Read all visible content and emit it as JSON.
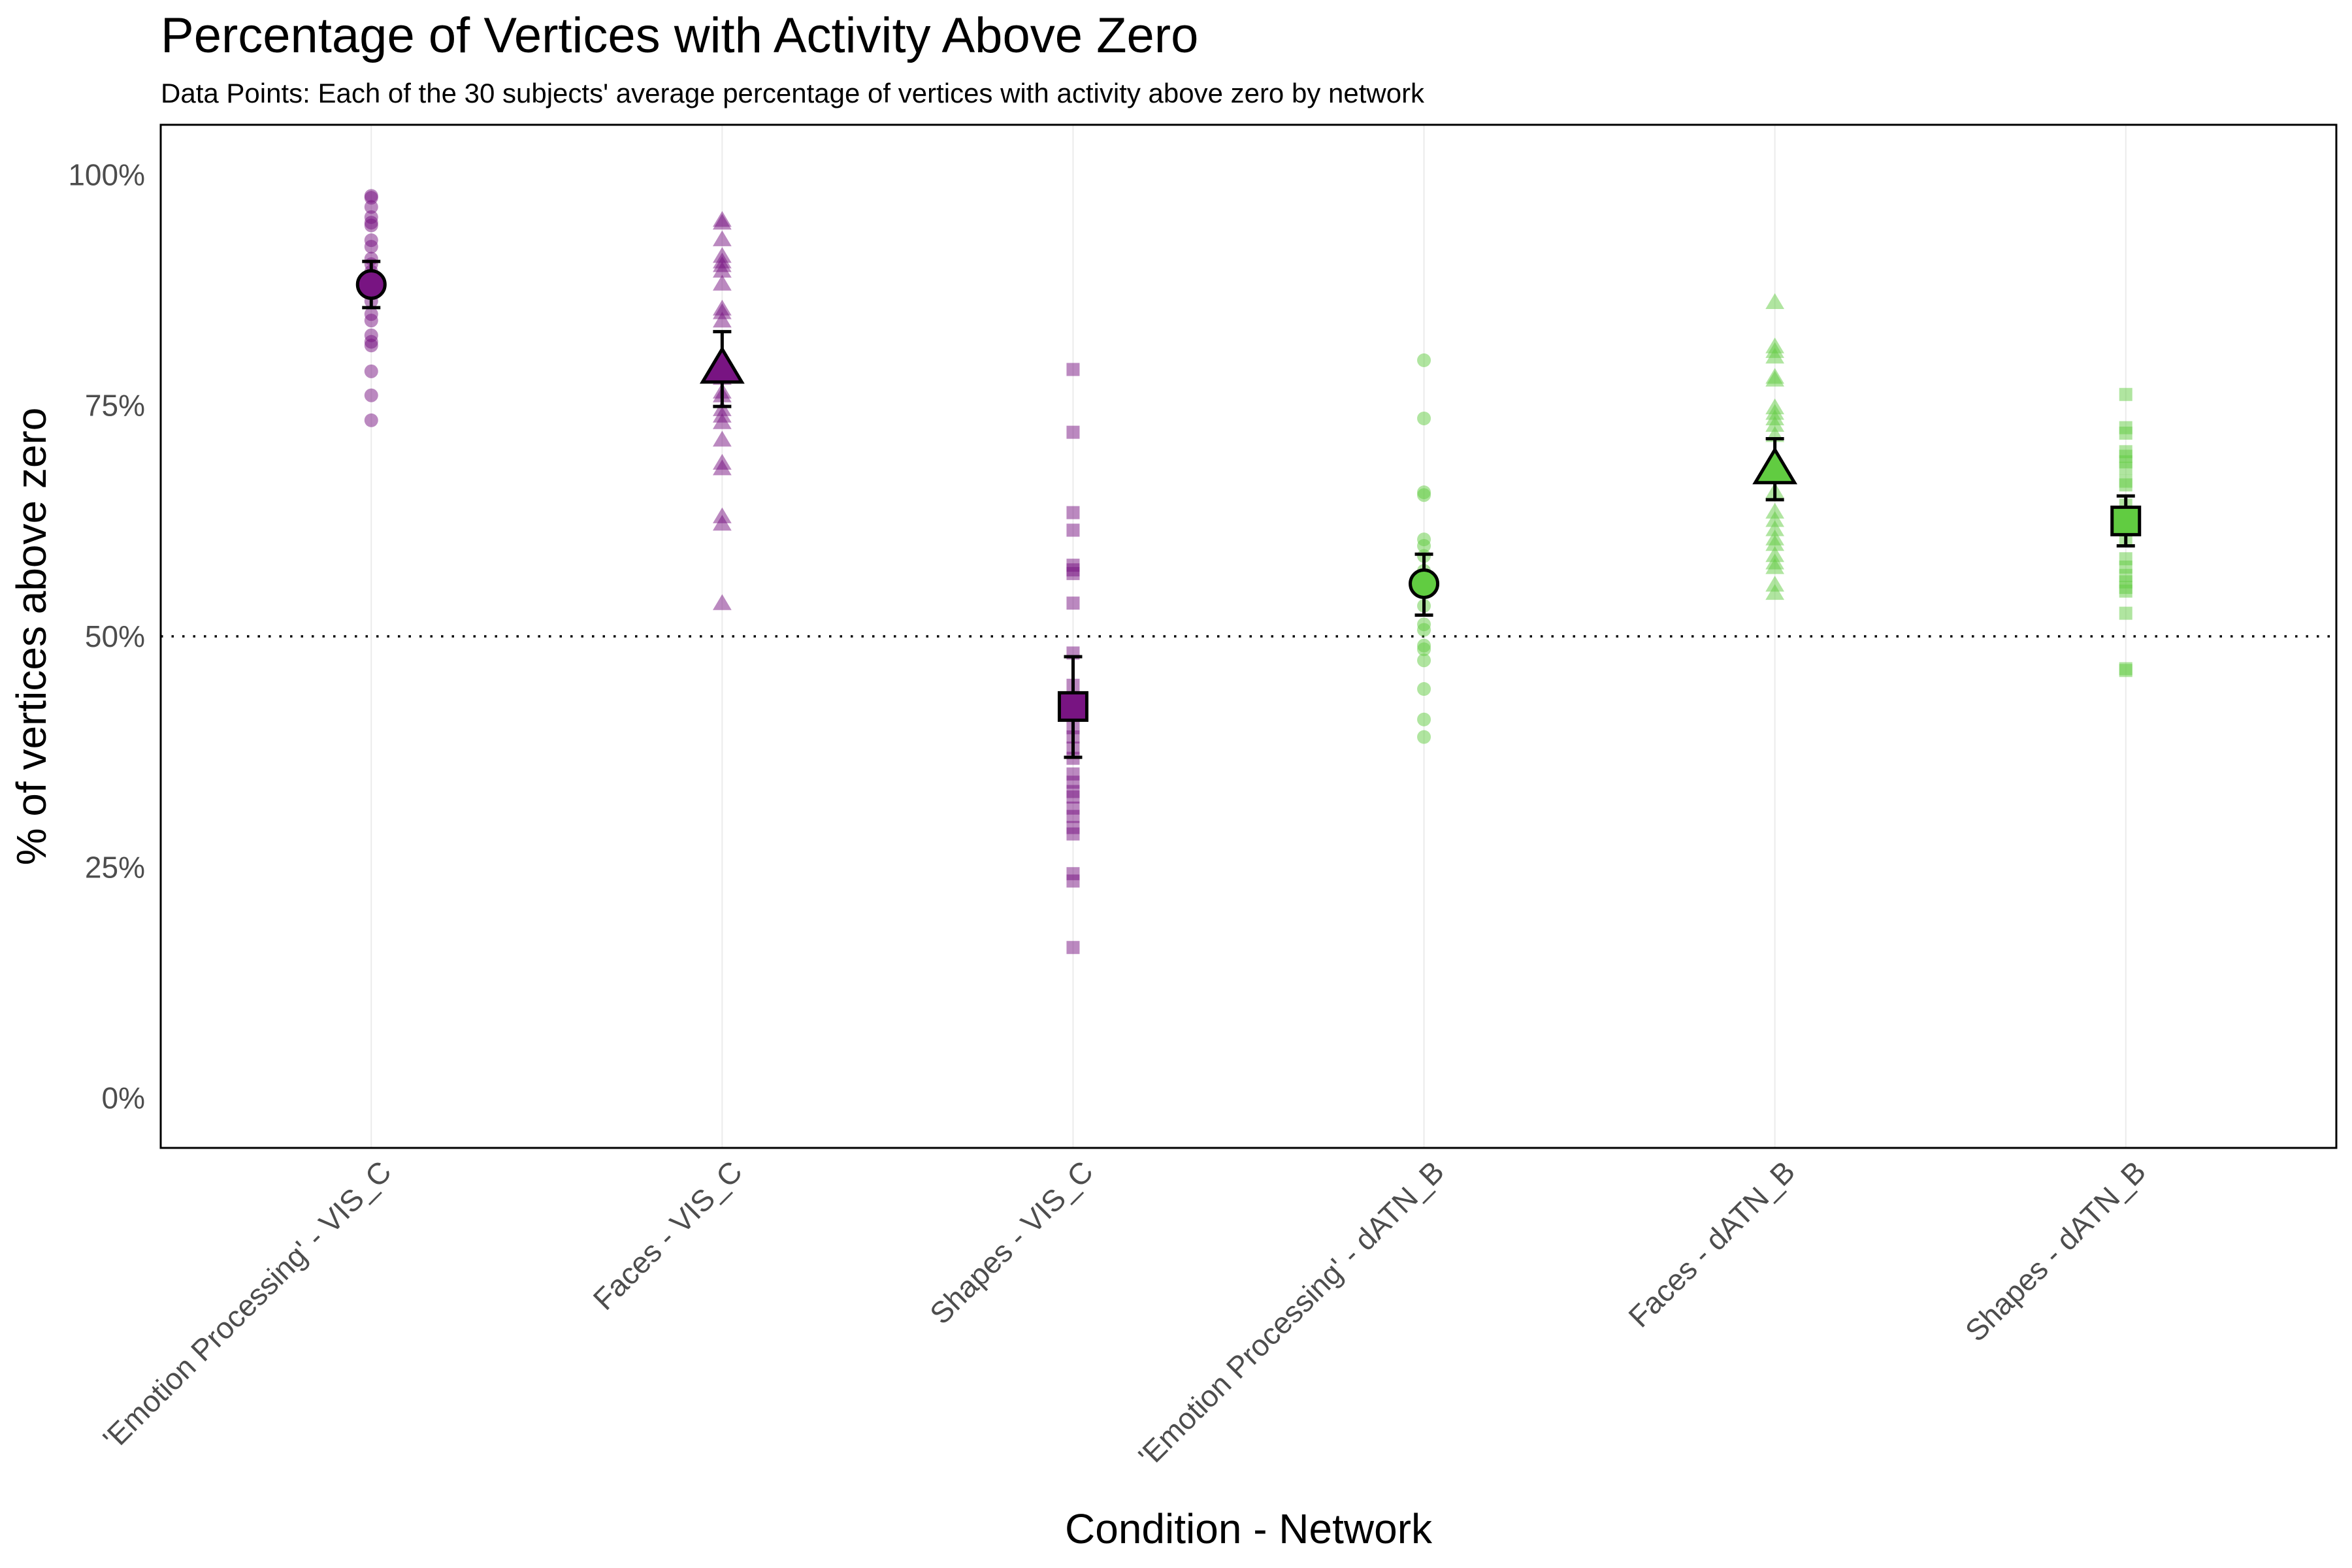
{
  "chart_data": {
    "type": "scatter",
    "title": "Percentage of Vertices with Activity Above Zero",
    "subtitle": "Data Points: Each of the 30 subjects' average percentage of vertices with activity above zero by network",
    "xlabel": "Condition - Network",
    "ylabel": "% of vertices above zero",
    "ylim": [
      -5.4,
      105.4
    ],
    "yticks": [
      0,
      25,
      50,
      75,
      100
    ],
    "ytick_labels": [
      "0%",
      "25%",
      "50%",
      "75%",
      "100%"
    ],
    "reference_line": {
      "y": 50,
      "style": "dotted"
    },
    "grid": "vertical-major-only",
    "legend": "none",
    "colors": {
      "VIS_C": "#781482",
      "dATN_B": "#61CC41",
      "outline": "#000000"
    },
    "categories": [
      "'Emotion Processing' - VIS_C",
      "Faces - VIS_C",
      "Shapes - VIS_C",
      "'Emotion Processing' - dATN_B",
      "Faces - dATN_B",
      "Shapes - dATN_B"
    ],
    "series": [
      {
        "name": "'Emotion Processing' - VIS_C",
        "network": "VIS_C",
        "shape": "circle",
        "mean": 88.1,
        "error_low": 85.6,
        "error_high": 90.6,
        "points": [
          97.7,
          97.5,
          96.5,
          95.4,
          94.8,
          94.5,
          92.9,
          92.2,
          90.9,
          90.3,
          89.5,
          88.8,
          87.9,
          87.2,
          86.3,
          84.9,
          84.2,
          82.6,
          81.9,
          81.5,
          78.7,
          76.1,
          73.4
        ]
      },
      {
        "name": "Faces - VIS_C",
        "network": "VIS_C",
        "shape": "triangle",
        "mean": 78.9,
        "error_low": 74.9,
        "error_high": 83.0,
        "points": [
          95.0,
          94.7,
          92.9,
          91.1,
          90.5,
          90.1,
          89.5,
          88.1,
          85.4,
          85.0,
          84.1,
          77.9,
          76.4,
          76.0,
          74.5,
          73.8,
          73.1,
          71.2,
          68.7,
          68.1,
          62.9,
          62.1,
          53.5
        ]
      },
      {
        "name": "Shapes - VIS_C",
        "network": "VIS_C",
        "shape": "square",
        "mean": 42.4,
        "error_low": 36.9,
        "error_high": 47.8,
        "points": [
          78.9,
          72.1,
          63.4,
          61.5,
          57.7,
          57.2,
          56.8,
          53.6,
          48.2,
          44.7,
          40.1,
          39.1,
          37.9,
          36.8,
          35.1,
          34.2,
          33.2,
          32.6,
          31.4,
          30.5,
          29.3,
          28.6,
          24.3,
          23.5,
          16.3
        ]
      },
      {
        "name": "'Emotion Processing' - dATN_B",
        "network": "dATN_B",
        "shape": "circle",
        "mean": 55.7,
        "error_low": 52.3,
        "error_high": 58.9,
        "points": [
          79.9,
          73.6,
          65.6,
          65.3,
          60.5,
          59.8,
          58.7,
          57.1,
          53.3,
          51.3,
          50.7,
          49.0,
          48.6,
          47.4,
          44.3,
          41.0,
          39.1
        ]
      },
      {
        "name": "Faces - dATN_B",
        "network": "dATN_B",
        "shape": "triangle",
        "mean": 68.0,
        "error_low": 64.8,
        "error_high": 71.4,
        "points": [
          86.1,
          81.3,
          80.8,
          80.2,
          78.0,
          77.7,
          74.7,
          74.1,
          73.5,
          72.8,
          71.7,
          65.6,
          63.4,
          62.5,
          61.5,
          60.5,
          59.9,
          58.7,
          57.9,
          57.4,
          55.5,
          54.6
        ]
      },
      {
        "name": "Shapes - dATN_B",
        "network": "dATN_B",
        "shape": "square",
        "mean": 62.5,
        "error_low": 59.8,
        "error_high": 65.2,
        "points": [
          76.2,
          72.6,
          72.0,
          70.0,
          69.5,
          68.9,
          68.2,
          66.8,
          66.4,
          64.2,
          60.4,
          58.4,
          57.5,
          56.6,
          55.9,
          55.3,
          54.9,
          52.5,
          46.5,
          46.3
        ]
      }
    ]
  }
}
